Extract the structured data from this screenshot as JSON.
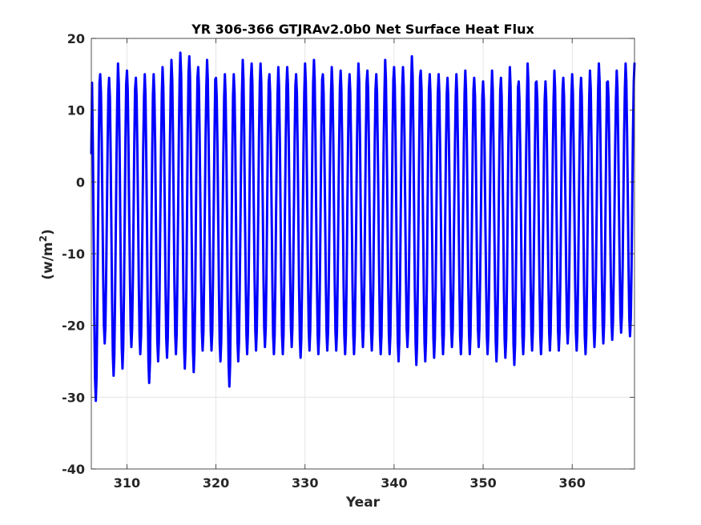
{
  "chart_data": {
    "type": "line",
    "title": "YR 306-366 GTJRAv2.0b0 Net Surface Heat Flux",
    "xlabel": "Year",
    "ylabel_main": "(w/m",
    "ylabel_sup": "2",
    "ylabel_close": ")",
    "xlim": [
      306,
      367
    ],
    "ylim": [
      -40,
      20
    ],
    "xticks": [
      310,
      320,
      330,
      340,
      350,
      360
    ],
    "xtick_labels": [
      "310",
      "320",
      "330",
      "340",
      "350",
      "360"
    ],
    "yticks": [
      -40,
      -30,
      -20,
      -10,
      0,
      10,
      20
    ],
    "ytick_labels": [
      "-40",
      "-30",
      "-20",
      "-10",
      "0",
      "10",
      "20"
    ],
    "grid": true,
    "series": [
      {
        "color": "#0000ff",
        "cycle_period_years": 1,
        "points_per_year": 12,
        "first_value": 4,
        "annual_max": [
          17.0,
          15.0,
          14.5,
          16.5,
          15.5,
          14.5,
          15.0,
          15.0,
          16.0,
          17.0,
          18.0,
          17.5,
          16.0,
          17.0,
          14.5,
          15.0,
          15.0,
          17.0,
          16.5,
          16.5,
          15.0,
          16.0,
          16.0,
          15.0,
          16.5,
          17.0,
          15.0,
          16.0,
          15.5,
          15.0,
          16.5,
          15.5,
          15.0,
          17.0,
          16.0,
          16.0,
          17.5,
          15.5,
          15.0,
          15.0,
          14.5,
          15.0,
          15.5,
          14.5,
          14.0,
          15.5,
          14.5,
          16.0,
          14.0,
          16.5,
          14.0,
          14.0,
          15.5,
          14.5,
          15.0,
          14.5,
          15.5,
          16.5,
          14.0,
          15.5,
          16.5
        ],
        "annual_min": [
          -30.5,
          -22.5,
          -27.0,
          -26.0,
          -23.0,
          -24.0,
          -28.0,
          -25.0,
          -24.5,
          -24.0,
          -26.0,
          -26.5,
          -23.5,
          -23.5,
          -25.0,
          -28.5,
          -25.0,
          -24.0,
          -23.5,
          -23.0,
          -24.0,
          -24.0,
          -23.0,
          -24.5,
          -23.5,
          -24.0,
          -23.5,
          -23.5,
          -24.0,
          -24.0,
          -23.0,
          -23.5,
          -24.0,
          -24.0,
          -25.0,
          -23.0,
          -25.5,
          -25.0,
          -24.5,
          -24.0,
          -23.0,
          -24.0,
          -24.0,
          -23.0,
          -24.0,
          -25.0,
          -24.5,
          -25.5,
          -24.0,
          -23.5,
          -24.0,
          -23.5,
          -23.5,
          -22.5,
          -23.5,
          -24.0,
          -23.0,
          -22.5,
          -22.0,
          -21.0,
          -21.5
        ]
      }
    ]
  }
}
